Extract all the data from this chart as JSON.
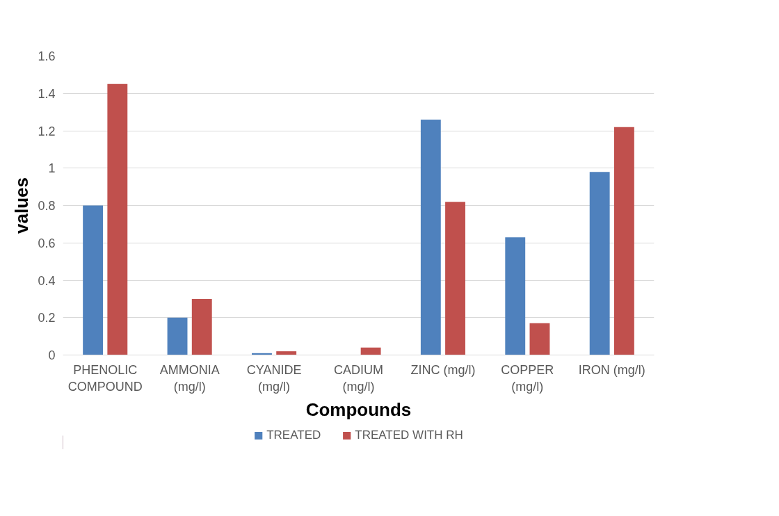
{
  "chart_data": {
    "type": "bar",
    "xlabel": "Compounds",
    "ylabel": "values",
    "categories": [
      "PHENOLIC\nCOMPOUND",
      "AMMONIA\n(mg/l)",
      "CYANIDE\n(mg/l)",
      "CADIUM\n(mg/l)",
      "ZINC (mg/l)",
      "COPPER\n(mg/l)",
      "IRON (mg/l)"
    ],
    "series": [
      {
        "name": "TREATED",
        "color": "#4f81bd",
        "values": [
          0.8,
          0.2,
          0.01,
          0,
          1.26,
          0.63,
          0.98
        ]
      },
      {
        "name": "TREATED WITH RH",
        "color": "#c0504d",
        "values": [
          1.45,
          0.3,
          0.02,
          0.04,
          0.82,
          0.17,
          1.22
        ]
      }
    ],
    "ylim": [
      0,
      1.6
    ],
    "yticks": [
      0,
      0.2,
      0.4,
      0.6,
      0.8,
      1,
      1.2,
      1.4,
      1.6
    ],
    "grid": "y",
    "legend": "bottom"
  }
}
